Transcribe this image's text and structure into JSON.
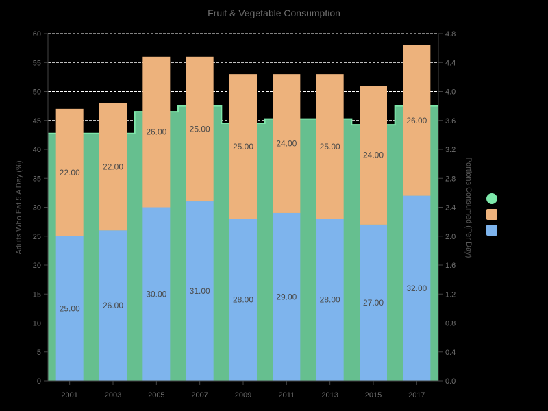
{
  "chart_data": {
    "type": "bar",
    "title": "Fruit & Vegetable Consumption",
    "categories": [
      "2001",
      "2003",
      "2005",
      "2007",
      "2009",
      "2011",
      "2013",
      "2015",
      "2017"
    ],
    "series": [
      {
        "kind": "bar",
        "stack": "adults",
        "axis": "left",
        "color": "#7eb4ed",
        "values": [
          25,
          26,
          30,
          31,
          28,
          29,
          28,
          27,
          32
        ],
        "labels": [
          "25.00",
          "26.00",
          "30.00",
          "31.00",
          "28.00",
          "29.00",
          "28.00",
          "27.00",
          "32.00"
        ]
      },
      {
        "kind": "bar",
        "stack": "adults",
        "axis": "left",
        "color": "#edb27c",
        "values": [
          22,
          22,
          26,
          25,
          25,
          24,
          25,
          24,
          26
        ],
        "labels": [
          "22.00",
          "22.00",
          "26.00",
          "25.00",
          "25.00",
          "24.00",
          "25.00",
          "24.00",
          "26.00"
        ]
      },
      {
        "kind": "area",
        "axis": "right",
        "color": "#66bf8f",
        "line_color": "#7de8aa",
        "values": [
          3.42,
          3.42,
          3.72,
          3.8,
          3.56,
          3.62,
          3.62,
          3.54,
          3.8
        ]
      }
    ],
    "ylabel": "Adults Who Eat 5 A Day (%)",
    "y2label": "Portions Consumed (Per Day)",
    "ylim": [
      0,
      60
    ],
    "y2lim": [
      0,
      4.8
    ],
    "yticks": [
      "0",
      "5",
      "10",
      "15",
      "20",
      "25",
      "30",
      "35",
      "40",
      "45",
      "50",
      "55",
      "60"
    ],
    "y2ticks": [
      "0.0",
      "0.4",
      "0.8",
      "1.2",
      "1.6",
      "2.0",
      "2.4",
      "2.8",
      "3.2",
      "3.6",
      "4.0",
      "4.4",
      "4.8"
    ],
    "grid": true,
    "legend_position": "right",
    "legend_markers": [
      {
        "shape": "circle",
        "color": "#7de8aa"
      },
      {
        "shape": "square",
        "color": "#edb27c"
      },
      {
        "shape": "square",
        "color": "#7eb4ed"
      }
    ]
  }
}
